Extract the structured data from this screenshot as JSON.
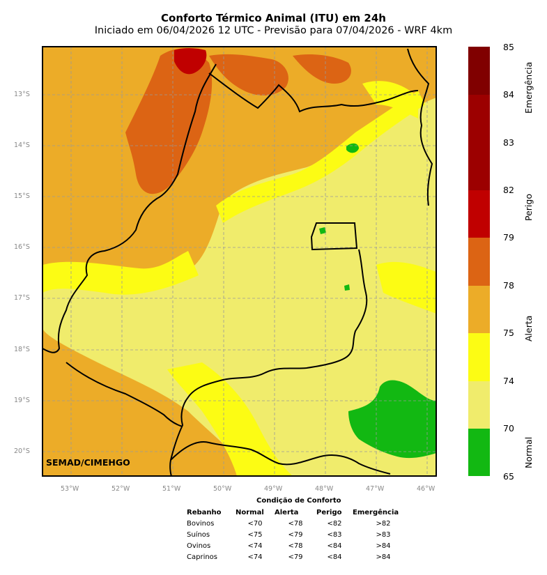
{
  "title": "Conforto Térmico Animal (ITU) em 24h",
  "subtitle": "Iniciado em 06/04/2026 12 UTC - Previsão para 07/04/2026 - WRF 4km",
  "credit": "SEMAD/CIMEHGO",
  "map": {
    "lat_labels": [
      "13°S",
      "14°S",
      "15°S",
      "16°S",
      "17°S",
      "18°S",
      "19°S",
      "20°S"
    ],
    "lon_labels": [
      "53°W",
      "52°W",
      "51°W",
      "50°W",
      "49°W",
      "48°W",
      "47°W",
      "46°W"
    ],
    "gridlines": true
  },
  "colorbar": {
    "ticks": [
      "85",
      "84",
      "83",
      "82",
      "79",
      "78",
      "75",
      "74",
      "70",
      "65"
    ],
    "colors": [
      "#800000",
      "#9c0000",
      "#c00000",
      "#dc6414",
      "#ecac28",
      "#fcfc14",
      "#f0ec6c",
      "#12b812"
    ],
    "categories": [
      "Emergência",
      "Perigo",
      "Alerta",
      "Normal"
    ]
  },
  "comfort_table": {
    "title": "Condição de Conforto",
    "headers": [
      "Rebanho",
      "Normal",
      "Alerta",
      "Perigo",
      "Emergência"
    ],
    "rows": [
      [
        "Bovinos",
        "<70",
        "<78",
        "<82",
        ">82"
      ],
      [
        "Suínos",
        "<75",
        "<79",
        "<83",
        ">83"
      ],
      [
        "Ovinos",
        "<74",
        "<78",
        "<84",
        ">84"
      ],
      [
        "Caprinos",
        "<74",
        "<79",
        "<84",
        ">84"
      ]
    ]
  }
}
